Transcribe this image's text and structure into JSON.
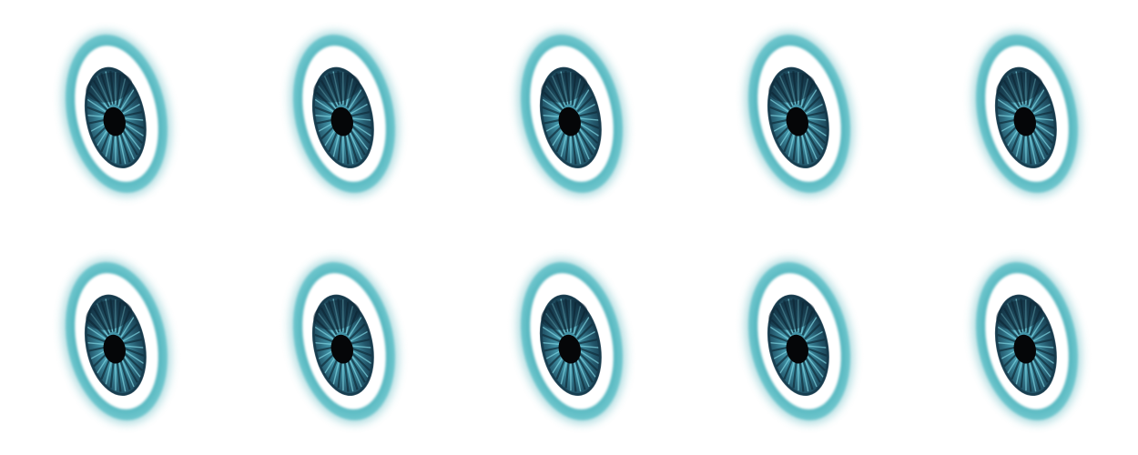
{
  "eyes": {
    "rows": 2,
    "columns": 5,
    "count": 10
  },
  "colors": {
    "background": "#ffffff",
    "outer_ring": "#4cb1ba",
    "sclera": "#ffffff",
    "iris_light": "#3f8fa3",
    "iris_dark": "#15384a",
    "pupil": "#050608"
  },
  "icon": "eye-icon"
}
